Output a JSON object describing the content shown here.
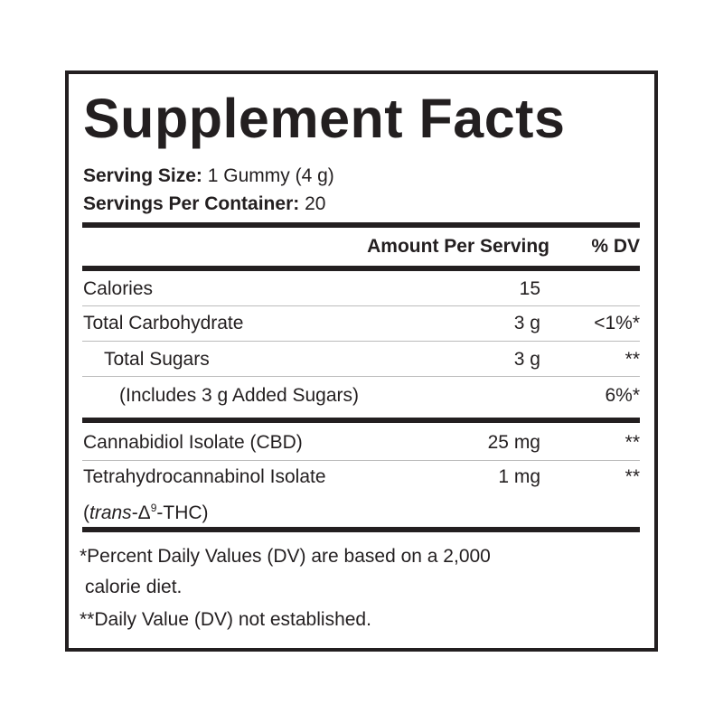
{
  "title": "Supplement Facts",
  "serving_size": {
    "label": "Serving Size:",
    "value": "1 Gummy (4 g)"
  },
  "servings_per_container": {
    "label": "Servings Per Container:",
    "value": "20"
  },
  "header": {
    "amount": "Amount Per Serving",
    "dv": "% DV"
  },
  "rows": [
    {
      "name": "Calories",
      "amount": "15",
      "dv": ""
    },
    {
      "name": "Total Carbohydrate",
      "amount": "3 g",
      "dv": "<1%*"
    },
    {
      "name": "Total Sugars",
      "amount": "3 g",
      "dv": "**"
    },
    {
      "name": "(Includes 3 g Added Sugars)",
      "amount": "",
      "dv": "6%*"
    },
    {
      "name": "Cannabidiol Isolate (CBD)",
      "amount": "25 mg",
      "dv": "**"
    },
    {
      "name": "Tetrahydrocannabinol Isolate",
      "name_line2_open": "(",
      "name_line2_italic": "trans",
      "name_line2_rest": "-Δ",
      "name_line2_sup": "9",
      "name_line2_end": "-THC)",
      "amount": "1 mg",
      "dv": "**"
    }
  ],
  "footnotes": [
    "*Percent Daily Values (DV) are based on a 2,000",
    "calorie diet.",
    "**Daily Value (DV) not established."
  ]
}
